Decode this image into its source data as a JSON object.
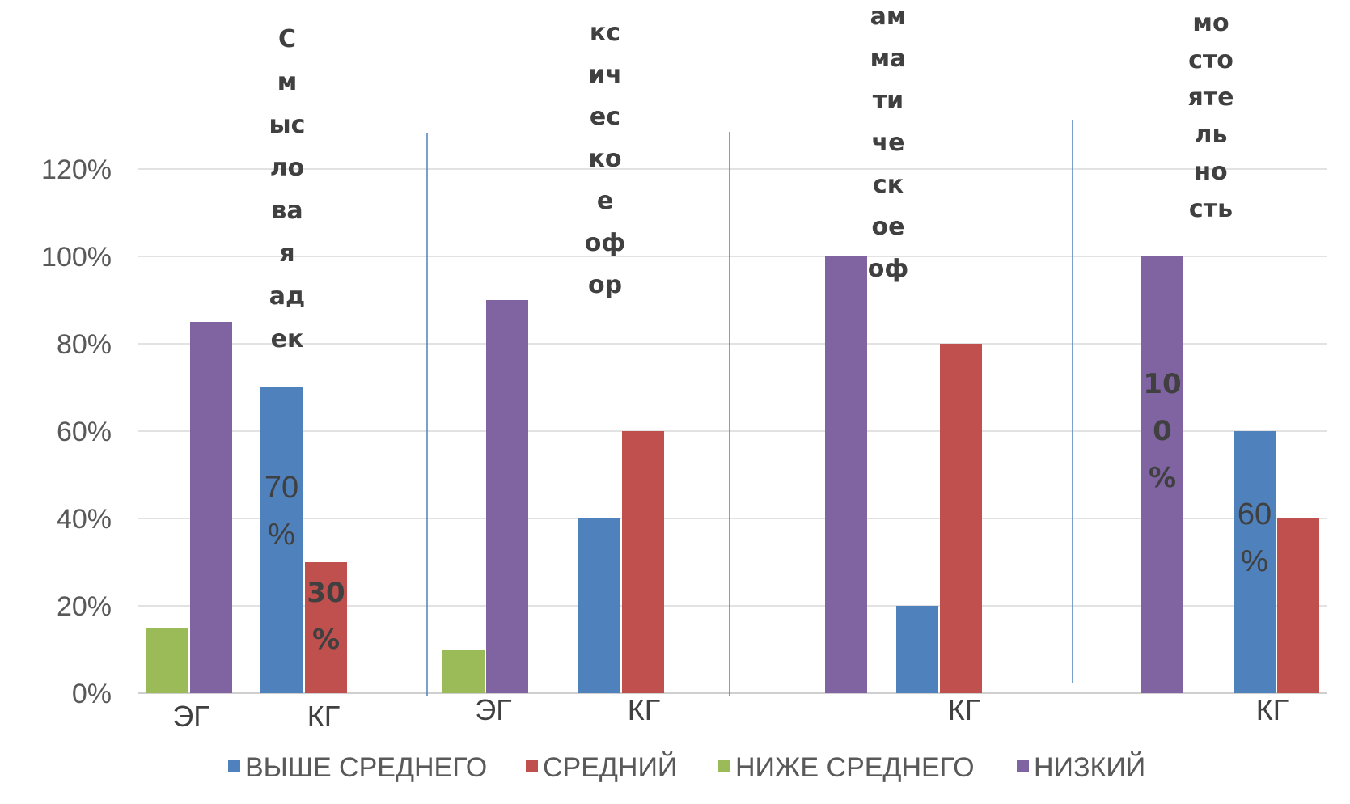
{
  "chart_data": {
    "type": "bar",
    "y_axis": {
      "ticks": [
        "0%",
        "20%",
        "40%",
        "60%",
        "80%",
        "100%",
        "120%"
      ],
      "ylim": [
        0,
        120
      ],
      "grid": true
    },
    "colors": {
      "ВЫШЕ СРЕДНЕГО": "#4f81bd",
      "СРЕДНИЙ": "#c0504d",
      "НИЖЕ СРЕДНЕГО": "#9bbb59",
      "НИЗКИЙ": "#8064a2",
      "divider": "#4f81bd",
      "gridline": "#d9d9d9",
      "text": "#595959"
    },
    "legend": {
      "position": "bottom",
      "entries": [
        "ВЫШЕ СРЕДНЕГО",
        "СРЕДНИЙ",
        "НИЖЕ СРЕДНЕГО",
        "НИЗКИЙ"
      ]
    },
    "panels": [
      {
        "title": "С\nм\nыс\nло\nва\nя\nад\nек",
        "categories": [
          "ЭГ",
          "КГ"
        ],
        "groups": [
          {
            "category": "ЭГ",
            "bars": [
              {
                "series": "НИЖЕ СРЕДНЕГО",
                "value": 15
              },
              {
                "series": "НИЗКИЙ",
                "value": 85
              }
            ]
          },
          {
            "category": "КГ",
            "bars": [
              {
                "series": "ВЫШЕ СРЕДНЕГО",
                "value": 70,
                "label": "70\n%"
              },
              {
                "series": "СРЕДНИЙ",
                "value": 30,
                "label": "30\n%"
              }
            ]
          }
        ]
      },
      {
        "title": "кс\nич\nес\nко\nе\nоф\nор",
        "categories": [
          "ЭГ",
          "КГ"
        ],
        "groups": [
          {
            "category": "ЭГ",
            "bars": [
              {
                "series": "НИЖЕ СРЕДНЕГО",
                "value": 10
              },
              {
                "series": "НИЗКИЙ",
                "value": 90
              }
            ]
          },
          {
            "category": "КГ",
            "bars": [
              {
                "series": "ВЫШЕ СРЕДНЕГО",
                "value": 40
              },
              {
                "series": "СРЕДНИЙ",
                "value": 60
              }
            ]
          }
        ]
      },
      {
        "title": "ам\nма\nти\nче\nск\nое\nоф",
        "categories": [
          "",
          "КГ"
        ],
        "groups": [
          {
            "category": "",
            "bars": [
              {
                "series": "НИЗКИЙ",
                "value": 100
              }
            ]
          },
          {
            "category": "КГ",
            "bars": [
              {
                "series": "ВЫШЕ СРЕДНЕГО",
                "value": 20
              },
              {
                "series": "СРЕДНИЙ",
                "value": 80
              }
            ]
          }
        ]
      },
      {
        "title": "мо\nсто\nяте\nль\nно\nсть",
        "categories": [
          "",
          "КГ"
        ],
        "groups": [
          {
            "category": "",
            "bars": [
              {
                "series": "НИЗКИЙ",
                "value": 100,
                "label": "10\n0\n%"
              }
            ]
          },
          {
            "category": "КГ",
            "bars": [
              {
                "series": "ВЫШЕ СРЕДНЕГО",
                "value": 60,
                "label": "60\n%"
              },
              {
                "series": "СРЕДНИЙ",
                "value": 40
              }
            ]
          }
        ]
      }
    ]
  }
}
